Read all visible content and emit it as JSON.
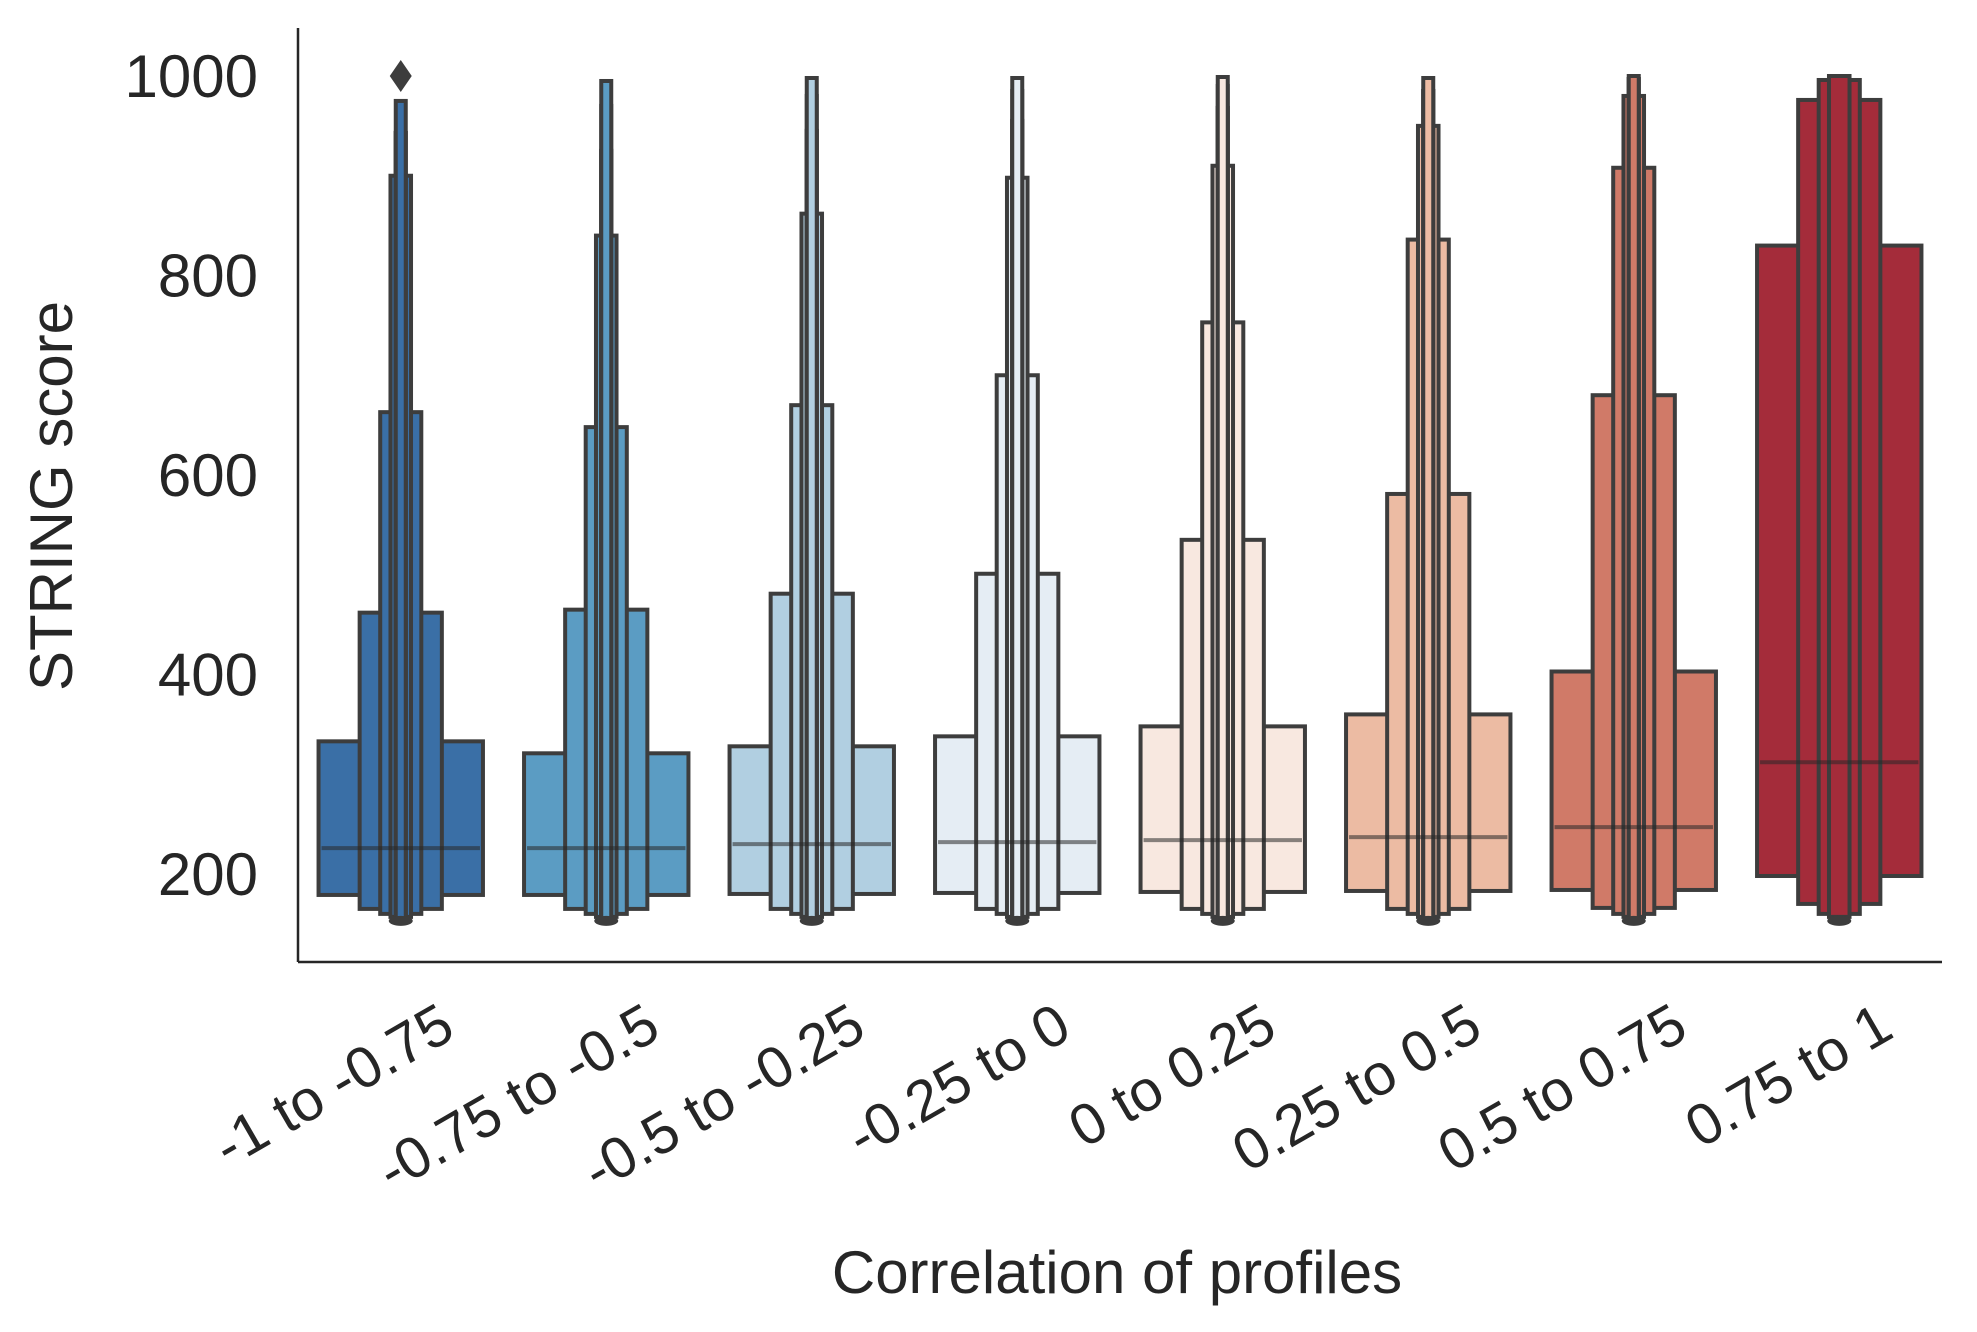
{
  "chart_data": {
    "type": "boxen",
    "xlabel": "Correlation of profiles",
    "ylabel": "STRING score",
    "y_ticks": [
      200,
      400,
      600,
      800,
      1000
    ],
    "ylim": [
      120,
      1045
    ],
    "legend": "none",
    "grid": false,
    "categories": [
      "-1 to -0.75",
      "-0.75 to -0.5",
      "-0.5 to -0.25",
      "-0.25 to 0",
      "0 to 0.25",
      "0.25 to 0.5",
      "0.5 to 0.75",
      "0.75 to 1"
    ],
    "colors": [
      "#3a6fa6",
      "#5b9cc3",
      "#b1cfe1",
      "#e5edf4",
      "#f8e8e0",
      "#ecbba3",
      "#d07a68",
      "#a42c3a"
    ],
    "series": [
      {
        "category": "-1 to -0.75",
        "median": 226,
        "boxes": [
          {
            "lo": 179,
            "hi": 333
          },
          {
            "lo": 165,
            "hi": 462
          },
          {
            "lo": 160,
            "hi": 663
          },
          {
            "lo": 157,
            "hi": 900
          },
          {
            "lo": 155,
            "hi": 943
          },
          {
            "lo": 154,
            "hi": 975
          }
        ],
        "outliers": [
          1000
        ]
      },
      {
        "category": "-0.75 to -0.5",
        "median": 226,
        "boxes": [
          {
            "lo": 179,
            "hi": 321
          },
          {
            "lo": 165,
            "hi": 465
          },
          {
            "lo": 160,
            "hi": 648
          },
          {
            "lo": 157,
            "hi": 840
          },
          {
            "lo": 155,
            "hi": 925
          },
          {
            "lo": 154,
            "hi": 970
          },
          {
            "lo": 153,
            "hi": 995
          }
        ],
        "outliers": []
      },
      {
        "category": "-0.5 to -0.25",
        "median": 230,
        "boxes": [
          {
            "lo": 180,
            "hi": 328
          },
          {
            "lo": 165,
            "hi": 481
          },
          {
            "lo": 160,
            "hi": 670
          },
          {
            "lo": 157,
            "hi": 862
          },
          {
            "lo": 155,
            "hi": 945
          },
          {
            "lo": 154,
            "hi": 980
          },
          {
            "lo": 153,
            "hi": 998
          }
        ],
        "outliers": []
      },
      {
        "category": "-0.25 to 0",
        "median": 232,
        "boxes": [
          {
            "lo": 181,
            "hi": 338
          },
          {
            "lo": 165,
            "hi": 501
          },
          {
            "lo": 160,
            "hi": 700
          },
          {
            "lo": 157,
            "hi": 898
          },
          {
            "lo": 155,
            "hi": 955
          },
          {
            "lo": 154,
            "hi": 985
          },
          {
            "lo": 153,
            "hi": 998
          }
        ],
        "outliers": []
      },
      {
        "category": "0 to 0.25",
        "median": 234,
        "boxes": [
          {
            "lo": 182,
            "hi": 348
          },
          {
            "lo": 165,
            "hi": 535
          },
          {
            "lo": 160,
            "hi": 753
          },
          {
            "lo": 157,
            "hi": 910
          },
          {
            "lo": 155,
            "hi": 968
          },
          {
            "lo": 154,
            "hi": 990
          },
          {
            "lo": 153,
            "hi": 999
          }
        ],
        "outliers": []
      },
      {
        "category": "0.25 to 0.5",
        "median": 237,
        "boxes": [
          {
            "lo": 183,
            "hi": 360
          },
          {
            "lo": 165,
            "hi": 581
          },
          {
            "lo": 160,
            "hi": 836
          },
          {
            "lo": 157,
            "hi": 950
          },
          {
            "lo": 155,
            "hi": 985
          },
          {
            "lo": 154,
            "hi": 998
          }
        ],
        "outliers": []
      },
      {
        "category": "0.5 to 0.75",
        "median": 247,
        "boxes": [
          {
            "lo": 184,
            "hi": 403
          },
          {
            "lo": 166,
            "hi": 680
          },
          {
            "lo": 160,
            "hi": 908
          },
          {
            "lo": 157,
            "hi": 980
          },
          {
            "lo": 155,
            "hi": 997
          },
          {
            "lo": 154,
            "hi": 1000
          }
        ],
        "outliers": []
      },
      {
        "category": "0.75 to 1",
        "median": 312,
        "boxes": [
          {
            "lo": 198,
            "hi": 830
          },
          {
            "lo": 170,
            "hi": 976
          },
          {
            "lo": 160,
            "hi": 996
          },
          {
            "lo": 157,
            "hi": 1000
          }
        ],
        "outliers": []
      }
    ]
  }
}
